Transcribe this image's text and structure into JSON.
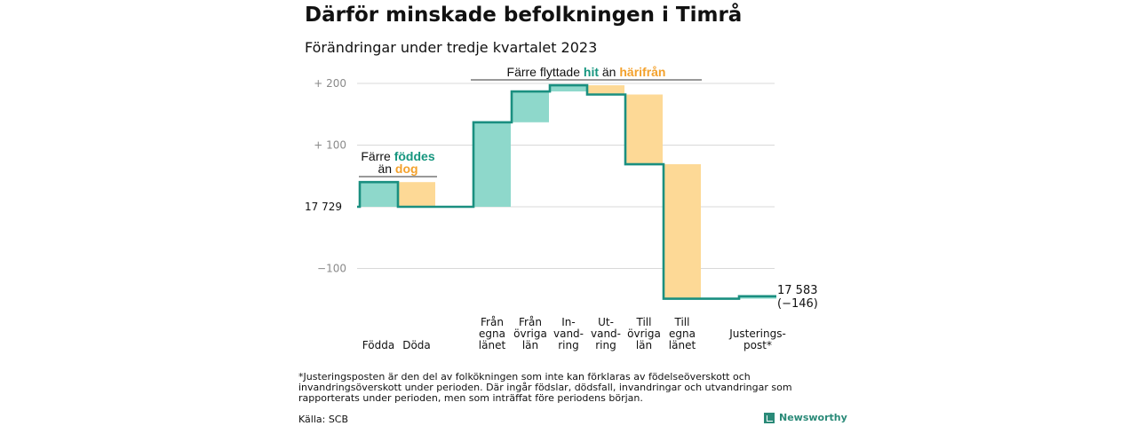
{
  "title": "Därför minskade befolkningen i Timrå",
  "subtitle": "Förändringar under tredje kvartalet 2023",
  "colors": {
    "positive": "#8ed8cb",
    "negative": "#fdd996",
    "line": "#1a8f80",
    "teal_text": "#16967f",
    "orange_text": "#f3a12c",
    "grid": "#d9d9d9",
    "axis_text": "#8a8a8a"
  },
  "chart_data": {
    "type": "waterfall",
    "start_label": "17  729",
    "start_value": 17729,
    "end_label": "17 583",
    "end_change": "(−146)",
    "y_ticks": [
      {
        "value": 200,
        "label": "+  200"
      },
      {
        "value": 100,
        "label": "+  100"
      },
      {
        "value": -100,
        "label": "−100"
      }
    ],
    "ylim": [
      -150,
      215
    ],
    "steps": [
      {
        "label": [
          "Födda"
        ],
        "change": 40
      },
      {
        "label": [
          "Döda"
        ],
        "change": -40
      },
      {
        "label": [],
        "change": 0
      },
      {
        "label": [
          "Från",
          "egna",
          "länet"
        ],
        "change": 137
      },
      {
        "label": [
          "Från",
          "övriga",
          "län"
        ],
        "change": 50
      },
      {
        "label": [
          "In-",
          "vand-",
          "ring"
        ],
        "change": 10
      },
      {
        "label": [
          "Ut-",
          "vand-",
          "ring"
        ],
        "change": -15
      },
      {
        "label": [
          "Till",
          "övriga",
          "län"
        ],
        "change": -113
      },
      {
        "label": [
          "Till",
          "egna",
          "länet"
        ],
        "change": -218
      },
      {
        "label": [],
        "change": 0
      },
      {
        "label": [
          "Justerings-",
          "post*"
        ],
        "change": 4
      }
    ],
    "annotations": [
      {
        "parts": [
          {
            "text": "Färre ",
            "tone": "plain"
          },
          {
            "text": "föddes",
            "tone": "teal"
          }
        ],
        "line2": [
          {
            "text": "än ",
            "tone": "plain"
          },
          {
            "text": "dog",
            "tone": "orange"
          }
        ]
      },
      {
        "parts": [
          {
            "text": "Färre flyttade ",
            "tone": "plain"
          },
          {
            "text": "hit",
            "tone": "teal"
          },
          {
            "text": "  än ",
            "tone": "plain"
          },
          {
            "text": "härifrån",
            "tone": "orange"
          }
        ]
      }
    ]
  },
  "footnote": "*Justeringsposten är den del av folkökningen som inte kan förklaras av födelseöverskott och invandringsöverskott under perioden. Där ingår födslar, dödsfall, invandringar och utvandringar som rapporterats under perioden, men som inträffat före periodens början.",
  "source": "Källa: SCB",
  "brand": "Newsworthy"
}
